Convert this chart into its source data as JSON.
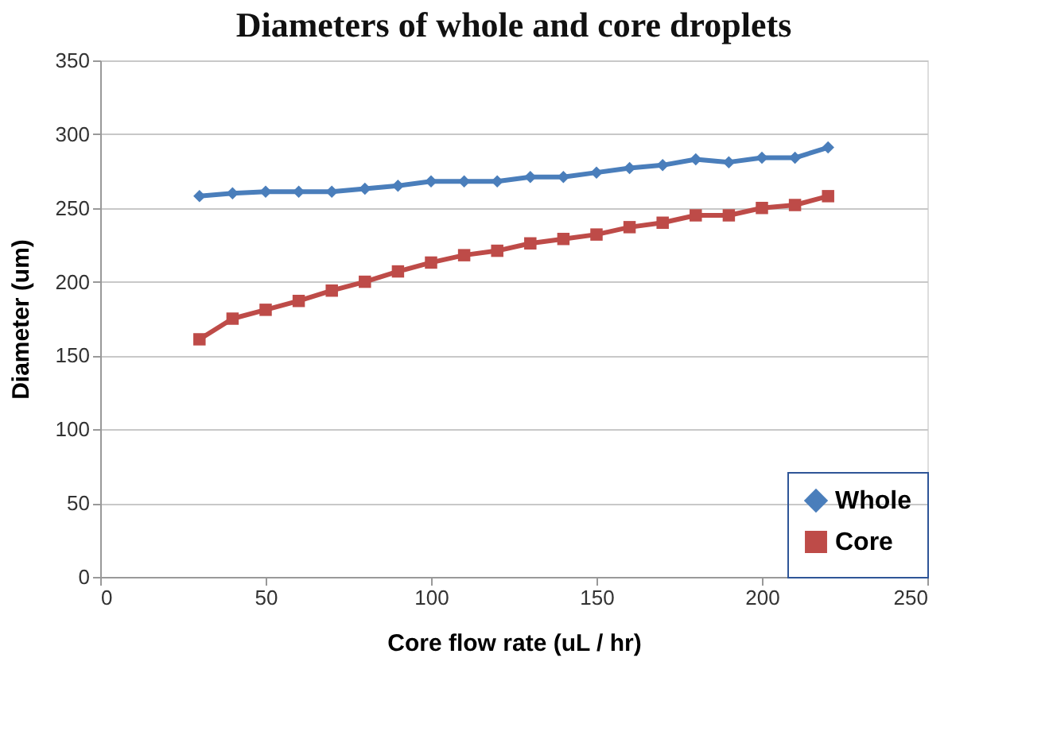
{
  "chart_data": {
    "type": "line",
    "title": "Diameters of whole and core droplets",
    "xlabel": "Core flow rate (uL / hr)",
    "ylabel": "Diameter (um)",
    "x": [
      30,
      40,
      50,
      60,
      70,
      80,
      90,
      100,
      110,
      120,
      130,
      140,
      150,
      160,
      170,
      180,
      190,
      200,
      210,
      220
    ],
    "series": [
      {
        "name": "Whole",
        "color": "#4a7ebb",
        "marker": "diamond",
        "values": [
          258,
          260,
          261,
          261,
          261,
          263,
          265,
          268,
          268,
          268,
          271,
          271,
          274,
          277,
          279,
          283,
          281,
          284,
          284,
          291
        ]
      },
      {
        "name": "Core",
        "color": "#be4b48",
        "marker": "square",
        "values": [
          161,
          175,
          181,
          187,
          194,
          200,
          207,
          213,
          218,
          221,
          226,
          229,
          232,
          237,
          240,
          245,
          245,
          250,
          252,
          258
        ]
      }
    ],
    "xlim": [
      0,
      250
    ],
    "xticks": [
      0,
      50,
      100,
      150,
      200,
      250
    ],
    "ylim": [
      0,
      350
    ],
    "yticks": [
      0,
      50,
      100,
      150,
      200,
      250,
      300,
      350
    ],
    "grid": "y",
    "legend": "bottom right",
    "line_style": "solid"
  }
}
